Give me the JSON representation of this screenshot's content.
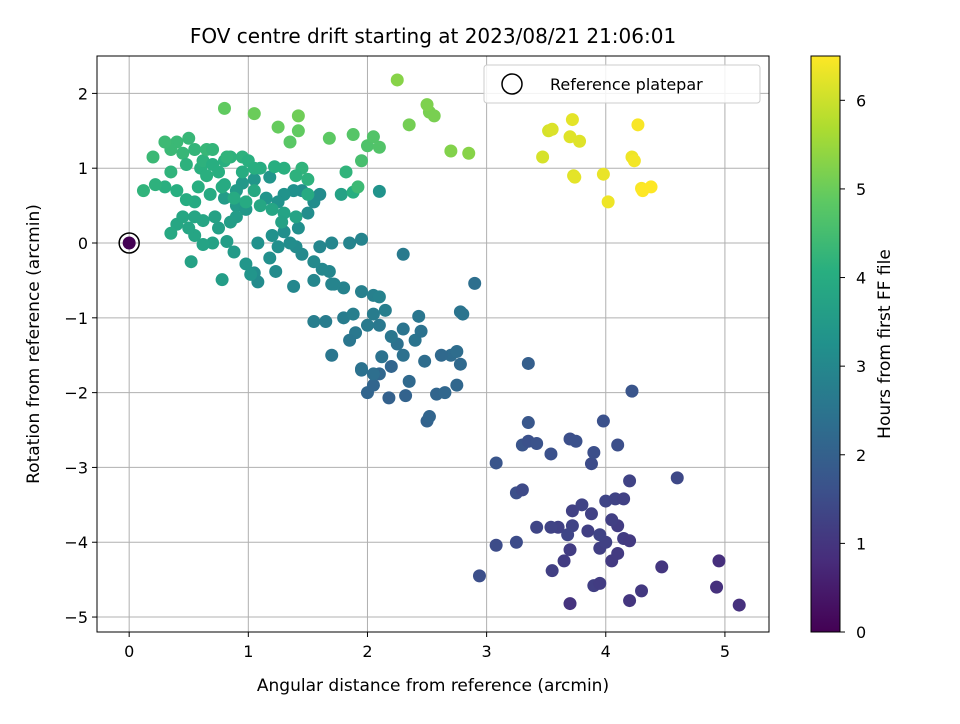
{
  "chart_data": {
    "type": "scatter",
    "title": "FOV centre drift starting at 2023/08/21 21:06:01",
    "xlabel": "Angular distance from reference (arcmin)",
    "ylabel": "Rotation from reference (arcmin)",
    "xlim": [
      -0.27,
      5.37
    ],
    "ylim": [
      -5.2,
      2.5
    ],
    "xticks": [
      0,
      1,
      2,
      3,
      4,
      5
    ],
    "yticks": [
      -5,
      -4,
      -3,
      -2,
      -1,
      0,
      1,
      2
    ],
    "grid": true,
    "legend": {
      "position": "top-right",
      "entries": [
        "Reference platepar"
      ]
    },
    "colorbar": {
      "label": "Hours from first FF file",
      "range": [
        0,
        6.5
      ],
      "ticks": [
        0,
        1,
        2,
        3,
        4,
        5,
        6
      ],
      "colormap": "viridis"
    },
    "reference_point": {
      "x": 0,
      "y": 0,
      "hours": 0
    },
    "points": [
      [
        3.7,
        -4.82,
        0.95
      ],
      [
        4.2,
        -4.78,
        1.0
      ],
      [
        4.3,
        -4.65,
        1.05
      ],
      [
        5.12,
        -4.84,
        0.9
      ],
      [
        4.93,
        -4.6,
        0.9
      ],
      [
        4.95,
        -4.25,
        0.85
      ],
      [
        3.55,
        -4.38,
        1.2
      ],
      [
        3.65,
        -4.25,
        1.15
      ],
      [
        3.9,
        -4.58,
        1.2
      ],
      [
        3.95,
        -4.55,
        1.15
      ],
      [
        4.05,
        -4.25,
        1.1
      ],
      [
        4.1,
        -4.15,
        1.1
      ],
      [
        4.47,
        -4.33,
        1.0
      ],
      [
        3.7,
        -4.1,
        1.15
      ],
      [
        3.95,
        -4.08,
        1.2
      ],
      [
        4.0,
        -4.0,
        1.25
      ],
      [
        4.15,
        -3.95,
        1.15
      ],
      [
        4.2,
        -3.98,
        1.1
      ],
      [
        3.6,
        -3.8,
        1.25
      ],
      [
        3.72,
        -3.78,
        1.3
      ],
      [
        3.85,
        -3.85,
        1.2
      ],
      [
        3.95,
        -3.9,
        1.3
      ],
      [
        4.1,
        -3.78,
        1.15
      ],
      [
        4.05,
        -3.7,
        1.2
      ],
      [
        3.42,
        -3.8,
        1.35
      ],
      [
        3.54,
        -3.8,
        1.3
      ],
      [
        3.68,
        -3.9,
        1.35
      ],
      [
        3.72,
        -3.58,
        1.25
      ],
      [
        3.8,
        -3.5,
        1.3
      ],
      [
        3.88,
        -3.62,
        1.25
      ],
      [
        4.0,
        -3.45,
        1.35
      ],
      [
        4.08,
        -3.42,
        1.3
      ],
      [
        4.15,
        -3.42,
        1.25
      ],
      [
        4.2,
        -3.18,
        1.3
      ],
      [
        4.6,
        -3.14,
        1.4
      ],
      [
        3.08,
        -4.04,
        1.5
      ],
      [
        3.25,
        -4.0,
        1.5
      ],
      [
        2.94,
        -4.45,
        1.55
      ],
      [
        3.25,
        -3.34,
        1.55
      ],
      [
        3.3,
        -3.3,
        1.45
      ],
      [
        3.08,
        -2.94,
        1.7
      ],
      [
        3.3,
        -2.7,
        1.7
      ],
      [
        3.35,
        -2.65,
        1.6
      ],
      [
        3.42,
        -2.68,
        1.65
      ],
      [
        3.54,
        -2.82,
        1.6
      ],
      [
        3.7,
        -2.62,
        1.55
      ],
      [
        3.75,
        -2.65,
        1.6
      ],
      [
        3.88,
        -2.95,
        1.5
      ],
      [
        3.9,
        -2.8,
        1.55
      ],
      [
        3.98,
        -2.38,
        1.6
      ],
      [
        4.1,
        -2.7,
        1.55
      ],
      [
        4.22,
        -1.98,
        1.7
      ],
      [
        3.35,
        -2.4,
        1.75
      ],
      [
        3.35,
        -1.61,
        1.95
      ],
      [
        2.32,
        -2.04,
        2.05
      ],
      [
        2.18,
        -2.07,
        2.0
      ],
      [
        2.0,
        -2.0,
        2.1
      ],
      [
        2.05,
        -1.9,
        2.1
      ],
      [
        2.1,
        -1.75,
        2.15
      ],
      [
        2.2,
        -1.65,
        2.1
      ],
      [
        2.35,
        -1.85,
        2.2
      ],
      [
        2.5,
        -2.38,
        2.05
      ],
      [
        2.52,
        -2.32,
        2.1
      ],
      [
        2.58,
        -2.02,
        2.1
      ],
      [
        2.65,
        -2.0,
        2.15
      ],
      [
        2.75,
        -1.9,
        2.15
      ],
      [
        2.78,
        -1.62,
        2.2
      ],
      [
        2.7,
        -1.5,
        2.25
      ],
      [
        2.75,
        -1.45,
        2.3
      ],
      [
        2.62,
        -1.5,
        2.2
      ],
      [
        2.48,
        -1.58,
        2.3
      ],
      [
        2.3,
        -1.5,
        2.4
      ],
      [
        2.12,
        -1.52,
        2.45
      ],
      [
        2.25,
        -1.35,
        2.4
      ],
      [
        2.4,
        -1.3,
        2.5
      ],
      [
        2.45,
        -1.18,
        2.45
      ],
      [
        2.3,
        -1.15,
        2.5
      ],
      [
        2.2,
        -1.25,
        2.55
      ],
      [
        2.1,
        -1.1,
        2.6
      ],
      [
        2.0,
        -1.1,
        2.65
      ],
      [
        1.9,
        -1.2,
        2.6
      ],
      [
        1.85,
        -1.3,
        2.55
      ],
      [
        1.95,
        -1.7,
        2.4
      ],
      [
        2.05,
        -1.75,
        2.35
      ],
      [
        1.95,
        -1.68,
        2.45
      ],
      [
        1.7,
        -1.5,
        2.55
      ],
      [
        1.65,
        -1.05,
        2.7
      ],
      [
        1.55,
        -1.05,
        2.75
      ],
      [
        1.8,
        -1.0,
        2.7
      ],
      [
        1.88,
        -0.95,
        2.75
      ],
      [
        2.05,
        -0.95,
        2.7
      ],
      [
        2.15,
        -0.9,
        2.75
      ],
      [
        2.05,
        -0.7,
        2.8
      ],
      [
        2.1,
        -0.72,
        2.85
      ],
      [
        1.95,
        -0.65,
        2.8
      ],
      [
        1.8,
        -0.6,
        2.85
      ],
      [
        1.72,
        -0.55,
        2.9
      ],
      [
        1.68,
        -0.38,
        2.95
      ],
      [
        1.62,
        -0.35,
        3.0
      ],
      [
        1.55,
        -0.25,
        3.05
      ],
      [
        1.45,
        -0.15,
        3.05
      ],
      [
        1.4,
        -0.05,
        3.1
      ],
      [
        1.6,
        -0.05,
        2.95
      ],
      [
        1.7,
        0.0,
        2.95
      ],
      [
        1.85,
        0.0,
        2.9
      ],
      [
        1.95,
        0.05,
        2.9
      ],
      [
        2.3,
        -0.15,
        2.65
      ],
      [
        2.8,
        -0.95,
        2.5
      ],
      [
        2.78,
        -0.92,
        2.5
      ],
      [
        2.9,
        -0.54,
        2.35
      ],
      [
        2.43,
        -0.98,
        2.55
      ],
      [
        1.55,
        -0.5,
        2.95
      ],
      [
        1.7,
        -0.55,
        2.9
      ],
      [
        1.38,
        -0.58,
        3.0
      ],
      [
        1.23,
        -0.38,
        3.1
      ],
      [
        1.05,
        -0.4,
        3.15
      ],
      [
        1.08,
        -0.52,
        3.1
      ],
      [
        1.18,
        -0.2,
        3.2
      ],
      [
        1.25,
        -0.05,
        3.2
      ],
      [
        1.35,
        0.0,
        3.15
      ],
      [
        1.08,
        0.0,
        3.25
      ],
      [
        1.2,
        0.1,
        3.25
      ],
      [
        1.3,
        0.15,
        3.2
      ],
      [
        1.42,
        0.2,
        3.2
      ],
      [
        1.5,
        0.4,
        3.15
      ],
      [
        1.55,
        0.55,
        3.15
      ],
      [
        1.6,
        0.65,
        3.1
      ],
      [
        1.45,
        0.7,
        3.2
      ],
      [
        1.38,
        0.7,
        3.25
      ],
      [
        1.3,
        0.65,
        3.3
      ],
      [
        1.25,
        0.55,
        3.3
      ],
      [
        1.15,
        0.6,
        3.35
      ],
      [
        1.18,
        0.88,
        3.35
      ],
      [
        1.05,
        0.85,
        3.4
      ],
      [
        0.95,
        0.8,
        3.45
      ],
      [
        0.9,
        0.7,
        3.5
      ],
      [
        0.8,
        0.6,
        3.55
      ],
      [
        0.9,
        0.5,
        3.5
      ],
      [
        0.98,
        0.45,
        3.45
      ],
      [
        0.9,
        0.35,
        3.55
      ],
      [
        0.85,
        0.28,
        3.6
      ],
      [
        0.75,
        0.2,
        3.65
      ],
      [
        0.7,
        0.0,
        3.7
      ],
      [
        0.82,
        0.02,
        3.6
      ],
      [
        0.88,
        -0.12,
        3.5
      ],
      [
        0.98,
        -0.28,
        3.4
      ],
      [
        1.02,
        -0.42,
        3.35
      ],
      [
        0.78,
        -0.49,
        3.6
      ],
      [
        0.52,
        -0.25,
        3.7
      ],
      [
        0.62,
        -0.02,
        3.75
      ],
      [
        0.55,
        0.1,
        3.8
      ],
      [
        0.5,
        0.2,
        3.8
      ],
      [
        0.4,
        0.25,
        3.85
      ],
      [
        0.35,
        0.13,
        3.9
      ],
      [
        0.45,
        0.35,
        3.85
      ],
      [
        0.55,
        0.35,
        3.8
      ],
      [
        0.62,
        0.3,
        3.8
      ],
      [
        0.72,
        0.35,
        3.7
      ],
      [
        0.55,
        0.55,
        3.95
      ],
      [
        0.48,
        0.58,
        4.0
      ],
      [
        0.4,
        0.7,
        4.05
      ],
      [
        0.3,
        0.75,
        4.1
      ],
      [
        0.22,
        0.78,
        4.15
      ],
      [
        0.12,
        0.7,
        4.2
      ],
      [
        0.35,
        0.95,
        4.2
      ],
      [
        0.45,
        1.2,
        4.3
      ],
      [
        0.4,
        1.35,
        4.35
      ],
      [
        0.5,
        1.4,
        4.3
      ],
      [
        0.55,
        1.25,
        4.25
      ],
      [
        0.48,
        1.05,
        4.15
      ],
      [
        0.6,
        1.0,
        4.1
      ],
      [
        0.62,
        1.1,
        4.15
      ],
      [
        0.7,
        1.05,
        4.05
      ],
      [
        0.8,
        1.1,
        4.1
      ],
      [
        0.85,
        1.15,
        4.15
      ],
      [
        0.95,
        1.15,
        4.15
      ],
      [
        1.0,
        1.1,
        4.1
      ],
      [
        1.1,
        1.0,
        4.0
      ],
      [
        0.95,
        0.95,
        4.0
      ],
      [
        0.75,
        0.95,
        4.05
      ],
      [
        0.65,
        0.9,
        4.1
      ],
      [
        0.58,
        0.75,
        4.05
      ],
      [
        0.68,
        0.65,
        3.95
      ],
      [
        0.78,
        0.75,
        4.0
      ],
      [
        0.88,
        0.6,
        3.95
      ],
      [
        0.98,
        0.55,
        3.95
      ],
      [
        1.05,
        0.7,
        3.9
      ],
      [
        1.1,
        0.5,
        3.85
      ],
      [
        1.2,
        0.45,
        3.8
      ],
      [
        1.3,
        0.4,
        3.75
      ],
      [
        1.4,
        0.35,
        3.75
      ],
      [
        1.28,
        0.28,
        3.7
      ],
      [
        0.35,
        1.25,
        4.35
      ],
      [
        0.3,
        1.35,
        4.4
      ],
      [
        0.2,
        1.15,
        4.35
      ],
      [
        0.65,
        1.25,
        4.3
      ],
      [
        0.7,
        1.25,
        4.25
      ],
      [
        0.82,
        1.15,
        4.2
      ],
      [
        0.8,
        0.78,
        3.95
      ],
      [
        1.05,
        1.0,
        4.05
      ],
      [
        1.3,
        1.0,
        4.1
      ],
      [
        1.5,
        0.65,
        3.95
      ],
      [
        1.45,
        1.0,
        4.2
      ],
      [
        1.5,
        0.85,
        4.15
      ],
      [
        1.4,
        0.9,
        4.15
      ],
      [
        1.22,
        1.02,
        4.05
      ],
      [
        2.1,
        0.69,
        3.3
      ],
      [
        1.78,
        0.65,
        3.7
      ],
      [
        1.82,
        0.95,
        4.2
      ],
      [
        1.88,
        0.68,
        4.05
      ],
      [
        1.92,
        0.75,
        4.4
      ],
      [
        1.95,
        1.1,
        4.55
      ],
      [
        2.0,
        1.3,
        4.65
      ],
      [
        2.05,
        1.42,
        4.7
      ],
      [
        2.1,
        1.28,
        4.7
      ],
      [
        1.88,
        1.45,
        4.75
      ],
      [
        1.68,
        1.4,
        4.85
      ],
      [
        1.42,
        1.5,
        4.9
      ],
      [
        1.25,
        1.55,
        4.95
      ],
      [
        1.35,
        1.35,
        4.8
      ],
      [
        1.05,
        1.73,
        5.0
      ],
      [
        0.8,
        1.8,
        4.9
      ],
      [
        1.42,
        1.7,
        5.05
      ],
      [
        2.35,
        1.58,
        5.1
      ],
      [
        2.52,
        1.75,
        5.15
      ],
      [
        2.56,
        1.7,
        5.15
      ],
      [
        2.5,
        1.85,
        5.2
      ],
      [
        2.25,
        2.18,
        5.3
      ],
      [
        2.7,
        1.23,
        5.25
      ],
      [
        2.85,
        1.2,
        5.3
      ],
      [
        3.52,
        1.5,
        6.1
      ],
      [
        3.55,
        1.52,
        6.15
      ],
      [
        3.7,
        1.42,
        6.2
      ],
      [
        3.78,
        1.36,
        6.2
      ],
      [
        3.72,
        1.65,
        6.25
      ],
      [
        3.47,
        1.15,
        6.1
      ],
      [
        3.73,
        0.9,
        6.2
      ],
      [
        3.74,
        0.88,
        6.25
      ],
      [
        3.98,
        0.92,
        6.3
      ],
      [
        4.02,
        0.55,
        6.35
      ],
      [
        4.22,
        1.15,
        6.35
      ],
      [
        4.24,
        1.1,
        6.4
      ],
      [
        4.27,
        1.58,
        6.45
      ],
      [
        4.3,
        0.73,
        6.45
      ],
      [
        4.31,
        0.7,
        6.5
      ],
      [
        4.38,
        0.75,
        6.5
      ]
    ]
  }
}
